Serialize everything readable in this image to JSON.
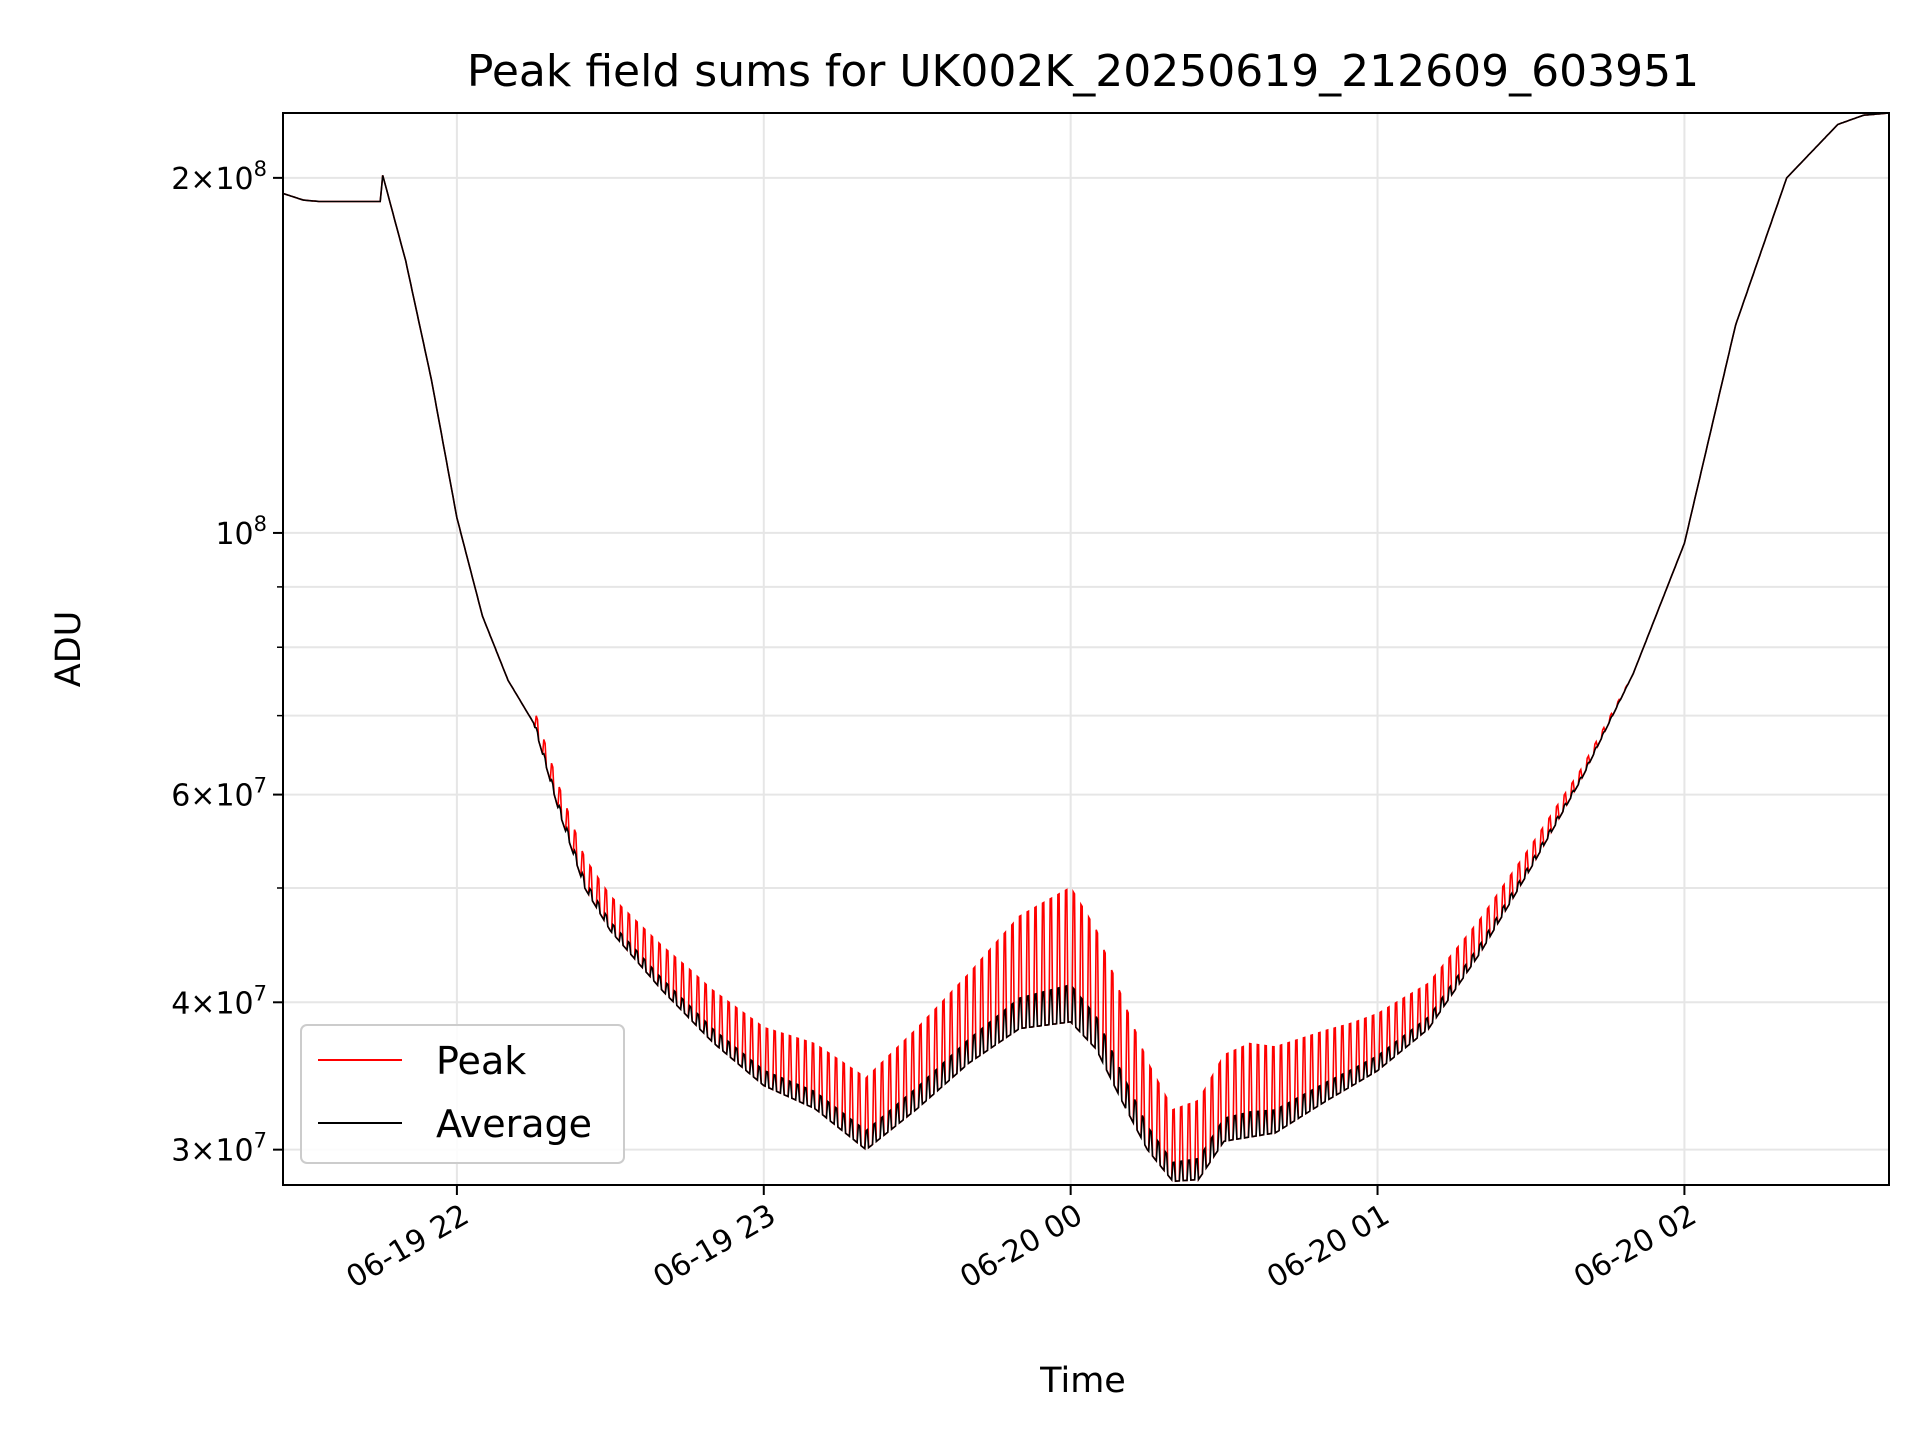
{
  "chart_data": {
    "type": "line",
    "title": "Peak field sums for UK002K_20250619_212609_603951",
    "xlabel": "Time",
    "ylabel": "ADU",
    "y_scale": "log",
    "ylim": [
      28000000,
      227000000
    ],
    "xlim": [
      "2025-06-19 21:26",
      "2025-06-20 02:40"
    ],
    "grid": true,
    "legend_position": "lower-left",
    "x_ticks": [
      {
        "value": "2025-06-19 22:00",
        "label": "06-19 22"
      },
      {
        "value": "2025-06-19 23:00",
        "label": "06-19 23"
      },
      {
        "value": "2025-06-20 00:00",
        "label": "06-20 00"
      },
      {
        "value": "2025-06-20 01:00",
        "label": "06-20 01"
      },
      {
        "value": "2025-06-20 02:00",
        "label": "06-20 02"
      }
    ],
    "y_major_ticks": [
      {
        "value": 30000000,
        "mant": "3",
        "exp": "7"
      },
      {
        "value": 40000000,
        "mant": "4",
        "exp": "7"
      },
      {
        "value": 60000000,
        "mant": "6",
        "exp": "7"
      },
      {
        "value": 100000000,
        "mant": "",
        "exp": "8"
      },
      {
        "value": 200000000,
        "mant": "2",
        "exp": "8"
      }
    ],
    "y_minor_ticks": [
      50000000,
      70000000,
      80000000,
      90000000
    ],
    "series": [
      {
        "name": "Peak",
        "color": "#ff0000",
        "note_pulsed": true,
        "pulse_interval_min": 1.5,
        "pulse_height_points": [
          [
            "2025-06-19 22:15",
            1.03
          ],
          [
            "2025-06-19 22:20",
            1.05
          ],
          [
            "2025-06-19 22:30",
            1.07
          ],
          [
            "2025-06-19 22:45",
            1.1
          ],
          [
            "2025-06-19 23:00",
            1.12
          ],
          [
            "2025-06-19 23:20",
            1.15
          ],
          [
            "2025-06-19 23:40",
            1.19
          ],
          [
            "2025-06-20 00:00",
            1.3
          ],
          [
            "2025-06-20 00:20",
            1.15
          ],
          [
            "2025-06-20 00:35",
            1.2
          ],
          [
            "2025-06-20 00:55",
            1.13
          ],
          [
            "2025-06-20 01:15",
            1.08
          ],
          [
            "2025-06-20 01:40",
            1.02
          ],
          [
            "2025-06-20 01:50",
            1.0
          ]
        ]
      },
      {
        "name": "Average",
        "color": "#000000",
        "x": [
          "2025-06-19 21:26",
          "2025-06-19 21:30",
          "2025-06-19 21:33",
          "2025-06-19 21:45",
          "2025-06-19 21:45.5",
          "2025-06-19 21:50",
          "2025-06-19 21:55",
          "2025-06-19 22:00",
          "2025-06-19 22:05",
          "2025-06-19 22:10",
          "2025-06-19 22:15",
          "2025-06-19 22:20",
          "2025-06-19 22:25",
          "2025-06-19 22:30",
          "2025-06-19 22:40",
          "2025-06-19 22:50",
          "2025-06-19 23:00",
          "2025-06-19 23:10",
          "2025-06-19 23:20",
          "2025-06-19 23:30",
          "2025-06-19 23:40",
          "2025-06-19 23:50",
          "2025-06-20 00:00",
          "2025-06-20 00:05",
          "2025-06-20 00:10",
          "2025-06-20 00:15",
          "2025-06-20 00:20",
          "2025-06-20 00:25",
          "2025-06-20 00:30",
          "2025-06-20 00:40",
          "2025-06-20 00:50",
          "2025-06-20 01:00",
          "2025-06-20 01:10",
          "2025-06-20 01:20",
          "2025-06-20 01:30",
          "2025-06-20 01:40",
          "2025-06-20 01:50",
          "2025-06-20 02:00",
          "2025-06-20 02:10",
          "2025-06-20 02:20",
          "2025-06-20 02:30",
          "2025-06-20 02:35",
          "2025-06-20 02:40"
        ],
        "y": [
          194000000,
          191500000,
          191000000,
          191000000,
          201000000,
          170000000,
          135000000,
          103000000,
          85000000,
          75000000,
          69000000,
          58000000,
          50000000,
          46000000,
          41000000,
          37000000,
          34000000,
          32500000,
          30000000,
          32500000,
          35500000,
          38000000,
          38500000,
          36500000,
          33000000,
          30000000,
          28200000,
          28300000,
          30500000,
          31000000,
          33000000,
          35000000,
          38000000,
          44000000,
          52000000,
          62000000,
          76000000,
          98000000,
          150000000,
          200000000,
          222000000,
          226000000,
          227000000
        ]
      }
    ]
  }
}
